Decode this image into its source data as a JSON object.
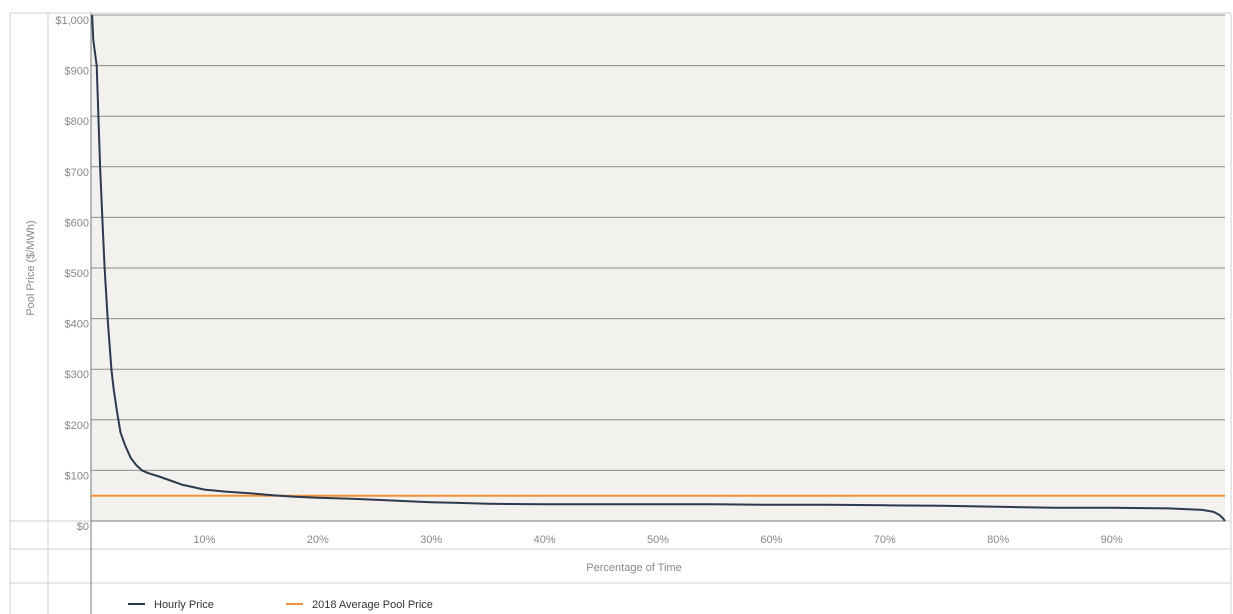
{
  "chart_data": {
    "type": "line",
    "title": "",
    "xlabel": "Percentage of Time",
    "ylabel": "Pool Price ($/MWh)",
    "xlim": [
      0,
      100
    ],
    "ylim": [
      0,
      1000
    ],
    "x_ticks": [
      {
        "value": 10,
        "label": "10%"
      },
      {
        "value": 20,
        "label": "20%"
      },
      {
        "value": 30,
        "label": "30%"
      },
      {
        "value": 40,
        "label": "40%"
      },
      {
        "value": 50,
        "label": "50%"
      },
      {
        "value": 60,
        "label": "60%"
      },
      {
        "value": 70,
        "label": "70%"
      },
      {
        "value": 80,
        "label": "80%"
      },
      {
        "value": 90,
        "label": "90%"
      }
    ],
    "y_ticks": [
      {
        "value": 0,
        "label": "$0"
      },
      {
        "value": 100,
        "label": "$100"
      },
      {
        "value": 200,
        "label": "$200"
      },
      {
        "value": 300,
        "label": "$300"
      },
      {
        "value": 400,
        "label": "$400"
      },
      {
        "value": 500,
        "label": "$500"
      },
      {
        "value": 600,
        "label": "$600"
      },
      {
        "value": 700,
        "label": "$700"
      },
      {
        "value": 800,
        "label": "$800"
      },
      {
        "value": 900,
        "label": "$900"
      },
      {
        "value": 1000,
        "label": "$1,000"
      }
    ],
    "grid": true,
    "legend_position": "bottom-left",
    "series": [
      {
        "name": "Hourly Price",
        "color": "#2b3a4f",
        "x": [
          0.1,
          0.2,
          0.5,
          0.8,
          1.0,
          1.2,
          1.5,
          1.8,
          2.0,
          2.3,
          2.6,
          3.0,
          3.5,
          4.0,
          4.5,
          5.0,
          6.0,
          7.0,
          8.0,
          9.0,
          10.0,
          12.0,
          14.0,
          15.0,
          16.0,
          18.0,
          20.0,
          23.0,
          25.0,
          28.0,
          30.0,
          32.0,
          35.0,
          40.0,
          45.0,
          50.0,
          55.0,
          60.0,
          65.0,
          70.0,
          75.0,
          80.0,
          85.0,
          90.0,
          95.0,
          98.0,
          99.0,
          99.5,
          99.8,
          100.0
        ],
        "values": [
          1000,
          950,
          900,
          700,
          600,
          500,
          390,
          300,
          260,
          215,
          175,
          150,
          125,
          110,
          100,
          95,
          88,
          80,
          72,
          67,
          62,
          58,
          55,
          53,
          51,
          48,
          46,
          44,
          42,
          39,
          37,
          36,
          34,
          33,
          33,
          33,
          33,
          32,
          32,
          31,
          30,
          28,
          26,
          26,
          25,
          22,
          18,
          12,
          6,
          0
        ]
      },
      {
        "name": "2018 Average Pool Price",
        "color": "#f0913a",
        "x": [
          0,
          100
        ],
        "values": [
          50,
          50
        ]
      }
    ]
  }
}
